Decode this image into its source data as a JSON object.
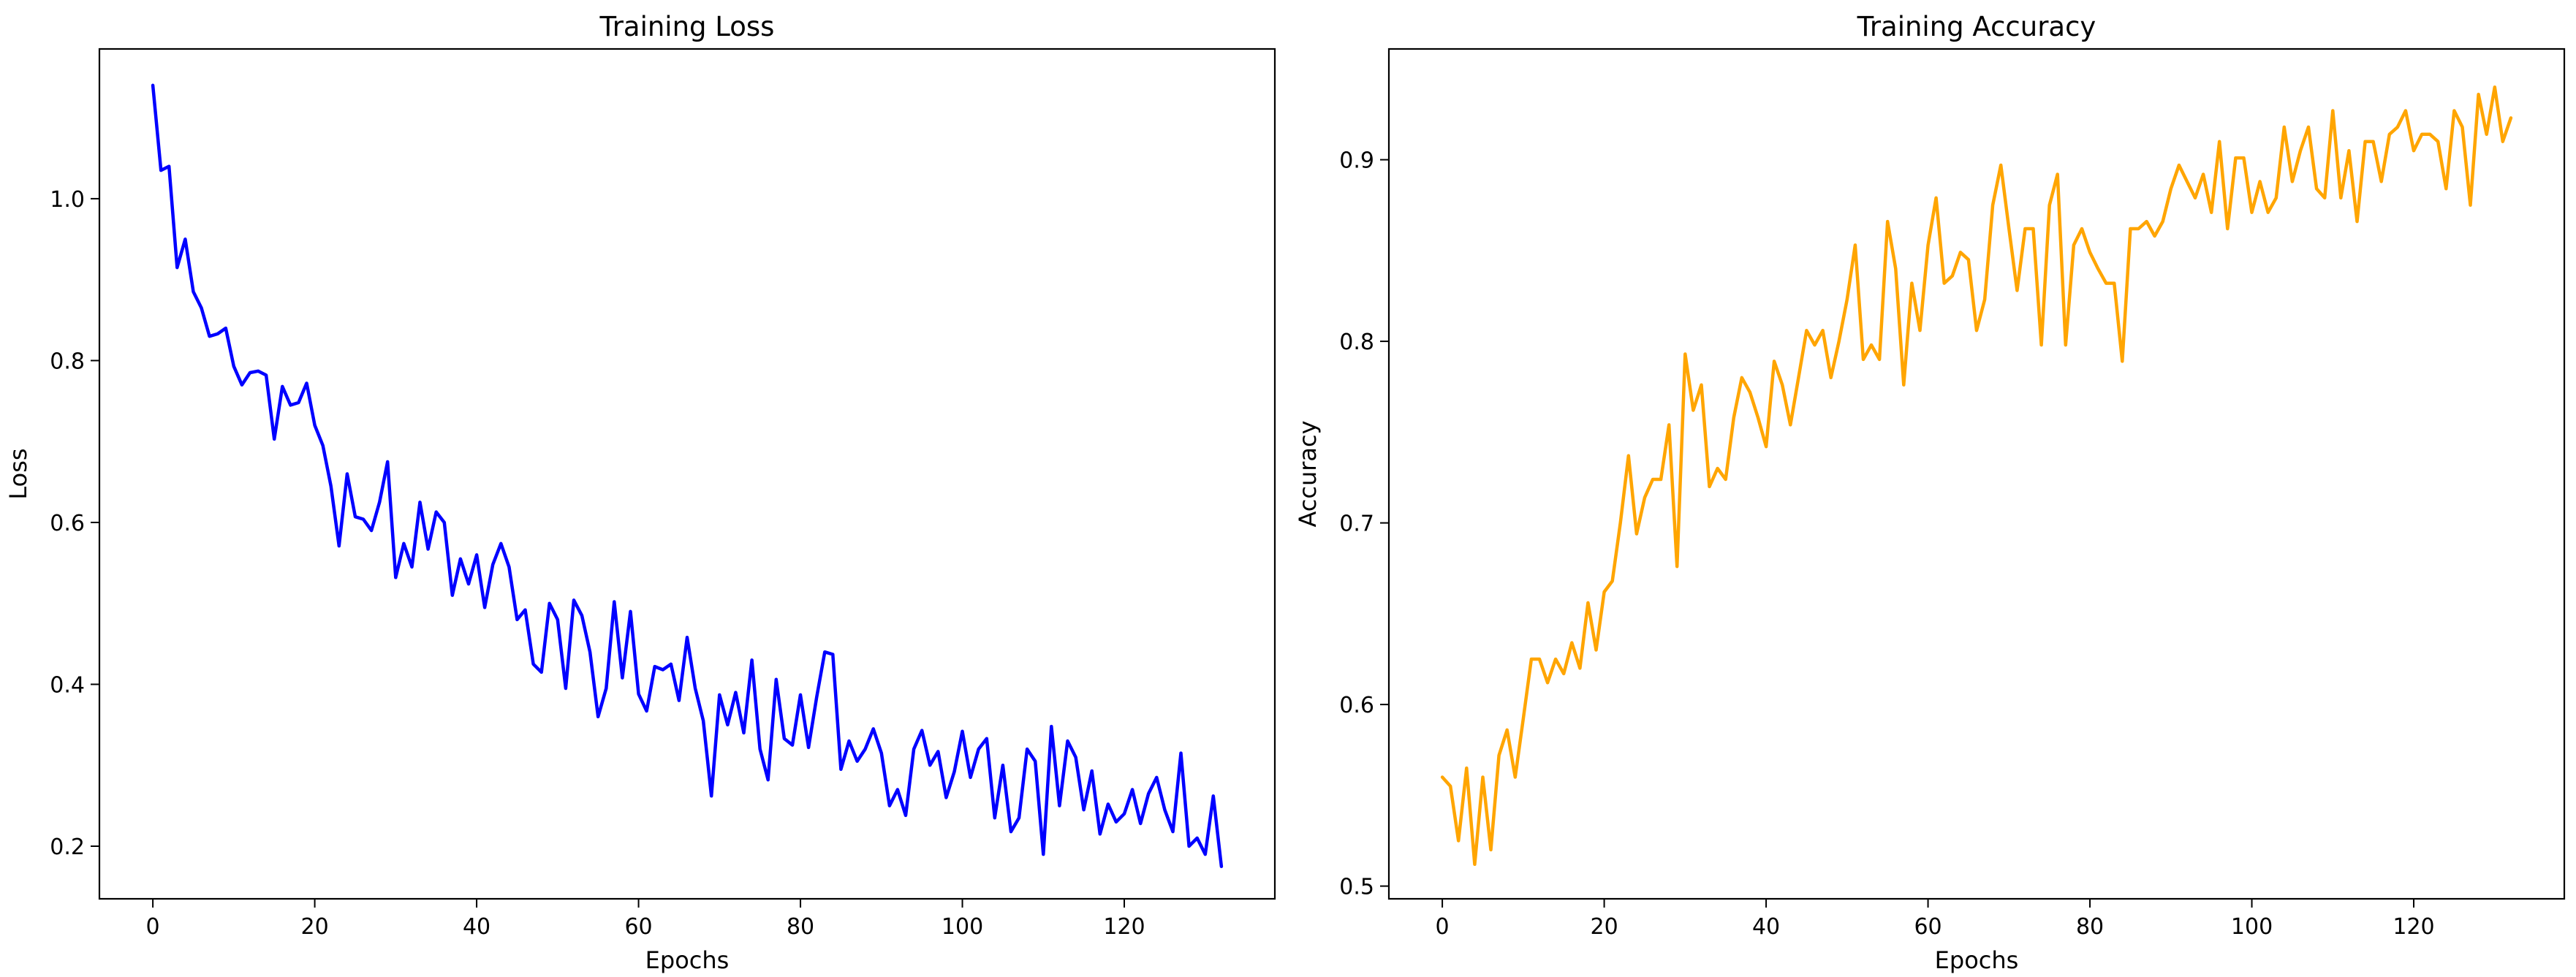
{
  "chart_data": [
    {
      "type": "line",
      "title": "Training Loss",
      "xlabel": "Epochs",
      "ylabel": "Loss",
      "xlim": [
        -6.6,
        138.6
      ],
      "ylim": [
        0.135,
        1.185
      ],
      "xticks": [
        0,
        20,
        40,
        60,
        80,
        100,
        120
      ],
      "yticks": [
        0.2,
        0.4,
        0.6,
        0.8,
        1.0
      ],
      "ytick_labels": [
        "0.2",
        "0.4",
        "0.6",
        "0.8",
        "1.0"
      ],
      "grid": false,
      "colors": {
        "line": "#0000ff"
      },
      "series": [
        {
          "x": [
            0,
            1,
            2,
            3,
            4,
            5,
            6,
            7,
            8,
            9,
            10,
            11,
            12,
            13,
            14,
            15,
            16,
            17,
            18,
            19,
            20,
            21,
            22,
            23,
            24,
            25,
            26,
            27,
            28,
            29,
            30,
            31,
            32,
            33,
            34,
            35,
            36,
            37,
            38,
            39,
            40,
            41,
            42,
            43,
            44,
            45,
            46,
            47,
            48,
            49,
            50,
            51,
            52,
            53,
            54,
            55,
            56,
            57,
            58,
            59,
            60,
            61,
            62,
            63,
            64,
            65,
            66,
            67,
            68,
            69,
            70,
            71,
            72,
            73,
            74,
            75,
            76,
            77,
            78,
            79,
            80,
            81,
            82,
            83,
            84,
            85,
            86,
            87,
            88,
            89,
            90,
            91,
            92,
            93,
            94,
            95,
            96,
            97,
            98,
            99,
            100,
            101,
            102,
            103,
            104,
            105,
            106,
            107,
            108,
            109,
            110,
            111,
            112,
            113,
            114,
            115,
            116,
            117,
            118,
            119,
            120,
            121,
            122,
            123,
            124,
            125,
            126,
            127,
            128,
            129,
            130,
            131,
            132
          ],
          "values": [
            1.14,
            1.035,
            1.04,
            0.915,
            0.95,
            0.885,
            0.865,
            0.83,
            0.833,
            0.84,
            0.793,
            0.77,
            0.785,
            0.787,
            0.782,
            0.703,
            0.768,
            0.745,
            0.748,
            0.772,
            0.72,
            0.695,
            0.645,
            0.571,
            0.66,
            0.607,
            0.604,
            0.59,
            0.625,
            0.675,
            0.532,
            0.574,
            0.545,
            0.625,
            0.567,
            0.613,
            0.6,
            0.51,
            0.555,
            0.524,
            0.56,
            0.495,
            0.548,
            0.574,
            0.545,
            0.48,
            0.492,
            0.425,
            0.415,
            0.5,
            0.48,
            0.395,
            0.504,
            0.485,
            0.44,
            0.36,
            0.395,
            0.502,
            0.408,
            0.49,
            0.388,
            0.367,
            0.422,
            0.418,
            0.425,
            0.38,
            0.458,
            0.395,
            0.355,
            0.262,
            0.387,
            0.35,
            0.39,
            0.34,
            0.43,
            0.32,
            0.282,
            0.406,
            0.333,
            0.325,
            0.387,
            0.322,
            0.384,
            0.44,
            0.437,
            0.295,
            0.33,
            0.305,
            0.32,
            0.345,
            0.315,
            0.25,
            0.27,
            0.238,
            0.32,
            0.343,
            0.3,
            0.317,
            0.26,
            0.292,
            0.342,
            0.285,
            0.32,
            0.333,
            0.235,
            0.3,
            0.218,
            0.235,
            0.32,
            0.305,
            0.19,
            0.348,
            0.25,
            0.33,
            0.31,
            0.245,
            0.293,
            0.215,
            0.252,
            0.23,
            0.24,
            0.27,
            0.228,
            0.265,
            0.285,
            0.245,
            0.218,
            0.315,
            0.2,
            0.21,
            0.19,
            0.262,
            0.175
          ]
        }
      ]
    },
    {
      "type": "line",
      "title": "Training Accuracy",
      "xlabel": "Epochs",
      "ylabel": "Accuracy",
      "xlim": [
        -6.6,
        138.6
      ],
      "ylim": [
        0.493,
        0.961
      ],
      "xticks": [
        0,
        20,
        40,
        60,
        80,
        100,
        120
      ],
      "yticks": [
        0.5,
        0.6,
        0.7,
        0.8,
        0.9
      ],
      "ytick_labels": [
        "0.5",
        "0.6",
        "0.7",
        "0.8",
        "0.9"
      ],
      "grid": false,
      "colors": {
        "line": "#ffa500"
      },
      "series": [
        {
          "x": [
            0,
            1,
            2,
            3,
            4,
            5,
            6,
            7,
            8,
            9,
            10,
            11,
            12,
            13,
            14,
            15,
            16,
            17,
            18,
            19,
            20,
            21,
            22,
            23,
            24,
            25,
            26,
            27,
            28,
            29,
            30,
            31,
            32,
            33,
            34,
            35,
            36,
            37,
            38,
            39,
            40,
            41,
            42,
            43,
            44,
            45,
            46,
            47,
            48,
            49,
            50,
            51,
            52,
            53,
            54,
            55,
            56,
            57,
            58,
            59,
            60,
            61,
            62,
            63,
            64,
            65,
            66,
            67,
            68,
            69,
            70,
            71,
            72,
            73,
            74,
            75,
            76,
            77,
            78,
            79,
            80,
            81,
            82,
            83,
            84,
            85,
            86,
            87,
            88,
            89,
            90,
            91,
            92,
            93,
            94,
            95,
            96,
            97,
            98,
            99,
            100,
            101,
            102,
            103,
            104,
            105,
            106,
            107,
            108,
            109,
            110,
            111,
            112,
            113,
            114,
            115,
            116,
            117,
            118,
            119,
            120,
            121,
            122,
            123,
            124,
            125,
            126,
            127,
            128,
            129,
            130,
            131,
            132
          ],
          "values": [
            0.56,
            0.555,
            0.525,
            0.565,
            0.512,
            0.56,
            0.52,
            0.572,
            0.586,
            0.56,
            0.592,
            0.625,
            0.625,
            0.612,
            0.625,
            0.617,
            0.634,
            0.62,
            0.656,
            0.63,
            0.662,
            0.668,
            0.7,
            0.737,
            0.694,
            0.714,
            0.724,
            0.724,
            0.754,
            0.676,
            0.793,
            0.762,
            0.776,
            0.72,
            0.73,
            0.724,
            0.758,
            0.78,
            0.772,
            0.758,
            0.742,
            0.789,
            0.776,
            0.754,
            0.78,
            0.806,
            0.798,
            0.806,
            0.78,
            0.8,
            0.823,
            0.853,
            0.79,
            0.798,
            0.79,
            0.866,
            0.84,
            0.776,
            0.832,
            0.806,
            0.853,
            0.879,
            0.832,
            0.836,
            0.849,
            0.845,
            0.806,
            0.823,
            0.875,
            0.897,
            0.862,
            0.828,
            0.862,
            0.862,
            0.798,
            0.875,
            0.892,
            0.798,
            0.853,
            0.862,
            0.849,
            0.84,
            0.832,
            0.832,
            0.789,
            0.862,
            0.862,
            0.866,
            0.858,
            0.866,
            0.884,
            0.897,
            0.888,
            0.879,
            0.892,
            0.871,
            0.91,
            0.862,
            0.901,
            0.901,
            0.871,
            0.888,
            0.871,
            0.879,
            0.918,
            0.888,
            0.905,
            0.918,
            0.884,
            0.879,
            0.927,
            0.879,
            0.905,
            0.866,
            0.91,
            0.91,
            0.888,
            0.914,
            0.918,
            0.927,
            0.905,
            0.914,
            0.914,
            0.91,
            0.884,
            0.927,
            0.918,
            0.875,
            0.936,
            0.914,
            0.94,
            0.91,
            0.923
          ]
        }
      ]
    }
  ]
}
